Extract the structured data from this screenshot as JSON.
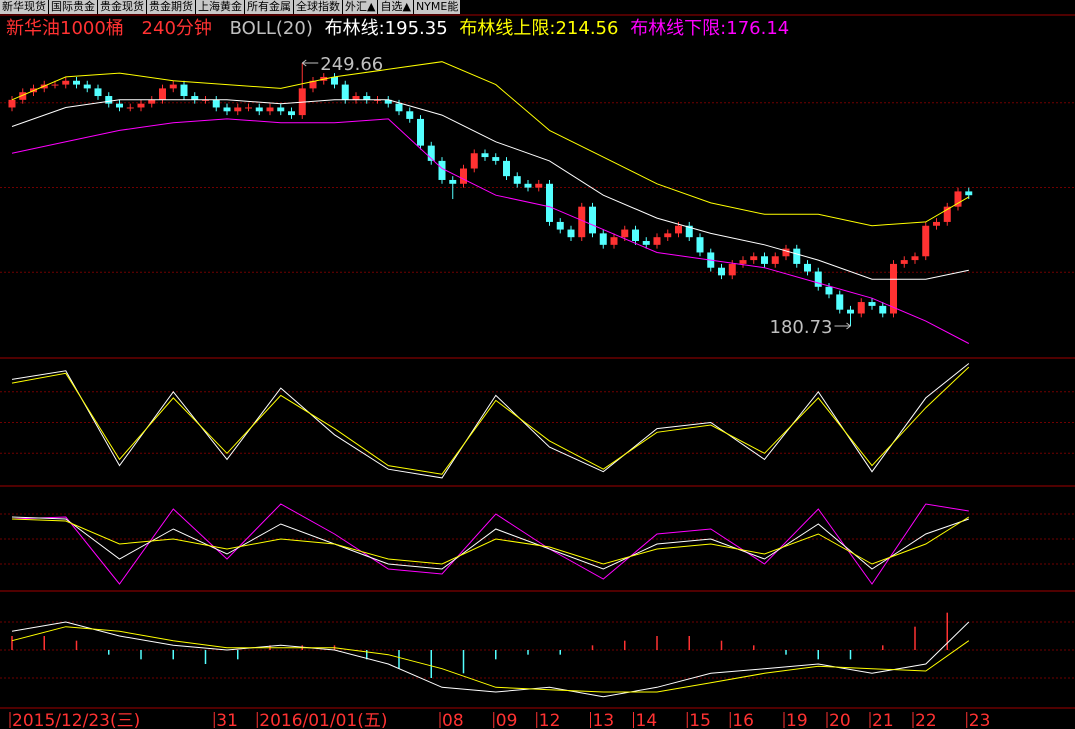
{
  "tabs": [
    "新华现货",
    "国际贵金",
    "贵金现货",
    "贵金期货",
    "上海黄金",
    "所有金属",
    "全球指数",
    "外汇▲",
    "自选▲",
    "NYME能"
  ],
  "header": {
    "symbol": "新华油1000桶",
    "period": "240分钟",
    "indicator": "BOLL(20)",
    "mid_label": "布林线:",
    "mid": 195.35,
    "upper_label": "布林线上限:",
    "upper": 214.56,
    "lower_label": "布林线下限:",
    "lower": 176.14
  },
  "chart_data": [
    {
      "type": "candlestick",
      "up_color": "#ff3232",
      "down_color": "#54ffff",
      "ylim": [
        172.6,
        261.45
      ],
      "categories": [
        "2015/12/23(三)",
        null,
        null,
        null,
        null,
        null,
        null,
        null,
        null,
        null,
        null,
        null,
        null,
        null,
        null,
        null,
        null,
        null,
        null,
        "31",
        null,
        null,
        null,
        "2016/01/01(五)",
        null,
        null,
        null,
        null,
        null,
        null,
        null,
        null,
        null,
        null,
        null,
        null,
        null,
        null,
        null,
        null,
        "08",
        null,
        null,
        null,
        null,
        "09",
        null,
        null,
        null,
        "12",
        null,
        null,
        null,
        null,
        "13",
        null,
        null,
        null,
        "14",
        null,
        null,
        null,
        null,
        "15",
        null,
        null,
        null,
        "16",
        null,
        null,
        null,
        null,
        "19",
        null,
        null,
        null,
        "20",
        null,
        null,
        null,
        "21",
        null,
        null,
        null,
        "22",
        null,
        null,
        null,
        null,
        "23"
      ],
      "ohlc": [
        [
          238,
          241,
          237,
          240
        ],
        [
          240,
          243,
          239,
          242
        ],
        [
          242,
          244,
          241,
          243
        ],
        [
          243,
          245,
          242,
          244
        ],
        [
          244,
          245,
          243,
          244
        ],
        [
          244,
          246,
          243,
          245
        ],
        [
          245,
          246,
          243,
          244
        ],
        [
          244,
          245,
          242,
          243
        ],
        [
          243,
          244,
          240,
          241
        ],
        [
          241,
          242,
          238,
          239
        ],
        [
          239,
          240,
          237,
          238
        ],
        [
          238,
          239,
          237,
          238
        ],
        [
          238,
          240,
          237,
          239
        ],
        [
          239,
          241,
          238,
          240
        ],
        [
          240,
          244,
          239,
          243
        ],
        [
          243,
          245,
          242,
          244
        ],
        [
          244,
          245,
          240,
          241
        ],
        [
          241,
          242,
          239,
          240
        ],
        [
          240,
          241,
          239,
          240
        ],
        [
          240,
          241,
          237,
          238
        ],
        [
          238,
          239,
          236,
          237
        ],
        [
          237,
          239,
          236,
          238
        ],
        [
          238,
          239,
          237,
          238
        ],
        [
          238,
          239,
          236,
          237
        ],
        [
          237,
          239,
          236,
          238
        ],
        [
          238,
          239,
          236,
          237
        ],
        [
          237,
          238,
          235,
          236
        ],
        [
          236,
          249.66,
          235,
          243
        ],
        [
          243,
          246,
          242,
          245
        ],
        [
          245,
          247,
          244,
          246
        ],
        [
          246,
          247,
          243,
          244
        ],
        [
          244,
          245,
          239,
          240
        ],
        [
          240,
          242,
          239,
          241
        ],
        [
          241,
          242,
          239,
          240
        ],
        [
          240,
          241,
          239,
          240
        ],
        [
          240,
          241,
          238,
          239
        ],
        [
          239,
          240,
          236,
          237
        ],
        [
          237,
          238,
          234,
          235
        ],
        [
          235,
          236,
          227,
          228
        ],
        [
          228,
          229,
          223,
          224
        ],
        [
          224,
          225,
          218,
          219
        ],
        [
          219,
          220,
          214,
          218
        ],
        [
          218,
          223,
          217,
          222
        ],
        [
          222,
          227,
          221,
          226
        ],
        [
          226,
          227,
          224,
          225
        ],
        [
          225,
          226,
          223,
          224
        ],
        [
          224,
          225,
          219,
          220
        ],
        [
          220,
          221,
          217,
          218
        ],
        [
          218,
          219,
          216,
          217
        ],
        [
          217,
          219,
          216,
          218
        ],
        [
          218,
          219,
          207,
          208
        ],
        [
          208,
          209,
          205,
          206
        ],
        [
          206,
          207,
          203,
          204
        ],
        [
          204,
          213,
          203,
          212
        ],
        [
          212,
          213,
          204,
          205
        ],
        [
          205,
          206,
          201,
          202
        ],
        [
          202,
          205,
          201,
          204
        ],
        [
          204,
          207,
          203,
          206
        ],
        [
          206,
          207,
          202,
          203
        ],
        [
          203,
          204,
          201,
          202
        ],
        [
          202,
          205,
          201,
          204
        ],
        [
          204,
          206,
          203,
          205
        ],
        [
          205,
          208,
          204,
          207
        ],
        [
          207,
          208,
          203,
          204
        ],
        [
          204,
          205,
          199,
          200
        ],
        [
          200,
          201,
          195,
          196
        ],
        [
          196,
          197,
          193,
          194
        ],
        [
          194,
          198,
          193,
          197
        ],
        [
          197,
          199,
          196,
          198
        ],
        [
          198,
          200,
          197,
          199
        ],
        [
          199,
          200,
          196,
          197
        ],
        [
          197,
          200,
          196,
          199
        ],
        [
          199,
          202,
          198,
          201
        ],
        [
          201,
          202,
          196,
          197
        ],
        [
          197,
          198,
          194,
          195
        ],
        [
          195,
          196,
          190,
          191
        ],
        [
          191,
          192,
          188,
          189
        ],
        [
          189,
          190,
          184,
          185
        ],
        [
          185,
          186,
          180.73,
          184
        ],
        [
          184,
          188,
          183,
          187
        ],
        [
          187,
          188,
          185,
          186
        ],
        [
          186,
          187,
          183,
          184
        ],
        [
          184,
          198,
          183,
          197
        ],
        [
          197,
          199,
          196,
          198
        ],
        [
          198,
          200,
          197,
          199
        ],
        [
          199,
          208,
          198,
          207
        ],
        [
          207,
          209,
          206,
          208
        ],
        [
          208,
          213,
          207,
          212
        ],
        [
          212,
          217,
          211,
          216
        ],
        [
          216,
          217,
          214,
          215
        ]
      ],
      "series": [
        {
          "color": "#ffffff",
          "x": [
            0,
            5,
            10,
            15,
            20,
            25,
            30,
            35,
            40,
            45,
            50,
            55,
            60,
            65,
            70,
            75,
            80,
            85,
            89
          ],
          "values": [
            233,
            238,
            240,
            240,
            240,
            239,
            240,
            240,
            236,
            229,
            224,
            215,
            209,
            205,
            202,
            198,
            193,
            193,
            195.35
          ]
        },
        {
          "color": "#ffff00",
          "x": [
            0,
            5,
            10,
            15,
            20,
            25,
            30,
            35,
            40,
            45,
            50,
            55,
            60,
            65,
            70,
            75,
            80,
            85,
            89
          ],
          "values": [
            240,
            246,
            247,
            245,
            244,
            243,
            246,
            248,
            250,
            244,
            232,
            225,
            218,
            213,
            210,
            210,
            207,
            208,
            214.56
          ]
        },
        {
          "color": "#ff00ff",
          "x": [
            0,
            5,
            10,
            15,
            20,
            25,
            30,
            35,
            40,
            45,
            50,
            55,
            60,
            65,
            70,
            75,
            80,
            85,
            89
          ],
          "values": [
            226,
            229,
            232,
            234,
            235,
            234,
            234,
            235,
            222,
            215,
            212,
            206,
            200,
            198,
            196,
            192,
            188,
            182,
            176.14
          ]
        }
      ]
    },
    {
      "type": "line",
      "ylim": [
        0,
        100
      ],
      "series": [
        {
          "color": "#ffffff",
          "x": [
            0,
            5,
            10,
            15,
            20,
            25,
            30,
            35,
            40,
            45,
            50,
            55,
            60,
            65,
            70,
            75,
            80,
            85,
            89
          ],
          "values": [
            85,
            92,
            15,
            75,
            20,
            78,
            40,
            12,
            5,
            72,
            30,
            10,
            45,
            50,
            20,
            75,
            10,
            70,
            98
          ]
        },
        {
          "color": "#ffff00",
          "x": [
            0,
            5,
            10,
            15,
            20,
            25,
            30,
            35,
            40,
            45,
            50,
            55,
            60,
            65,
            70,
            75,
            80,
            85,
            89
          ],
          "values": [
            82,
            90,
            20,
            70,
            25,
            72,
            45,
            15,
            8,
            68,
            35,
            12,
            42,
            48,
            25,
            70,
            15,
            62,
            95
          ]
        }
      ]
    },
    {
      "type": "line",
      "ylim": [
        0,
        100
      ],
      "series": [
        {
          "color": "#ff00ff",
          "x": [
            0,
            5,
            10,
            15,
            20,
            25,
            30,
            35,
            40,
            45,
            50,
            55,
            60,
            65,
            70,
            75,
            80,
            85,
            89
          ],
          "values": [
            70,
            72,
            5,
            80,
            30,
            85,
            55,
            20,
            15,
            75,
            40,
            10,
            55,
            60,
            25,
            80,
            5,
            85,
            78
          ]
        },
        {
          "color": "#ffffff",
          "x": [
            0,
            5,
            10,
            15,
            20,
            25,
            30,
            35,
            40,
            45,
            50,
            55,
            60,
            65,
            70,
            75,
            80,
            85,
            89
          ],
          "values": [
            72,
            70,
            30,
            60,
            35,
            65,
            45,
            25,
            20,
            60,
            40,
            20,
            45,
            50,
            30,
            65,
            20,
            55,
            70
          ]
        },
        {
          "color": "#ffff00",
          "x": [
            0,
            5,
            10,
            15,
            20,
            25,
            30,
            35,
            40,
            45,
            50,
            55,
            60,
            65,
            70,
            75,
            80,
            85,
            89
          ],
          "values": [
            70,
            68,
            45,
            50,
            40,
            50,
            45,
            30,
            25,
            50,
            42,
            25,
            40,
            45,
            35,
            55,
            25,
            45,
            72
          ]
        }
      ]
    },
    {
      "type": "macd",
      "ylim": [
        -1.2,
        1.2
      ],
      "up_color": "#ff3232",
      "down_color": "#54ffff",
      "bars": {
        "x": [
          0,
          3,
          6,
          9,
          12,
          15,
          18,
          21,
          24,
          27,
          30,
          33,
          36,
          39,
          42,
          45,
          48,
          51,
          54,
          57,
          60,
          63,
          66,
          69,
          72,
          75,
          78,
          81,
          84,
          87
        ],
        "values": [
          0.3,
          0.3,
          0.2,
          -0.1,
          -0.2,
          -0.2,
          -0.3,
          -0.2,
          0.1,
          0.1,
          0.1,
          -0.2,
          -0.4,
          -0.6,
          -0.5,
          -0.2,
          -0.1,
          -0.1,
          0.1,
          0.2,
          0.3,
          0.3,
          0.2,
          0.1,
          -0.1,
          -0.2,
          -0.2,
          0.1,
          0.5,
          0.8
        ]
      },
      "series": [
        {
          "color": "#ffffff",
          "x": [
            0,
            5,
            10,
            15,
            20,
            25,
            30,
            35,
            40,
            45,
            50,
            55,
            60,
            65,
            70,
            75,
            80,
            85,
            89
          ],
          "values": [
            0.4,
            0.6,
            0.3,
            0.1,
            0.0,
            0.1,
            0.0,
            -0.3,
            -0.8,
            -0.9,
            -0.8,
            -1.0,
            -0.8,
            -0.5,
            -0.4,
            -0.3,
            -0.5,
            -0.3,
            0.6
          ]
        },
        {
          "color": "#ffff00",
          "x": [
            0,
            5,
            10,
            15,
            20,
            25,
            30,
            35,
            40,
            45,
            50,
            55,
            60,
            65,
            70,
            75,
            80,
            85,
            89
          ],
          "values": [
            0.2,
            0.5,
            0.4,
            0.2,
            0.05,
            0.05,
            0.05,
            -0.1,
            -0.4,
            -0.8,
            -0.85,
            -0.9,
            -0.9,
            -0.7,
            -0.5,
            -0.35,
            -0.4,
            -0.45,
            0.2
          ]
        }
      ]
    }
  ]
}
